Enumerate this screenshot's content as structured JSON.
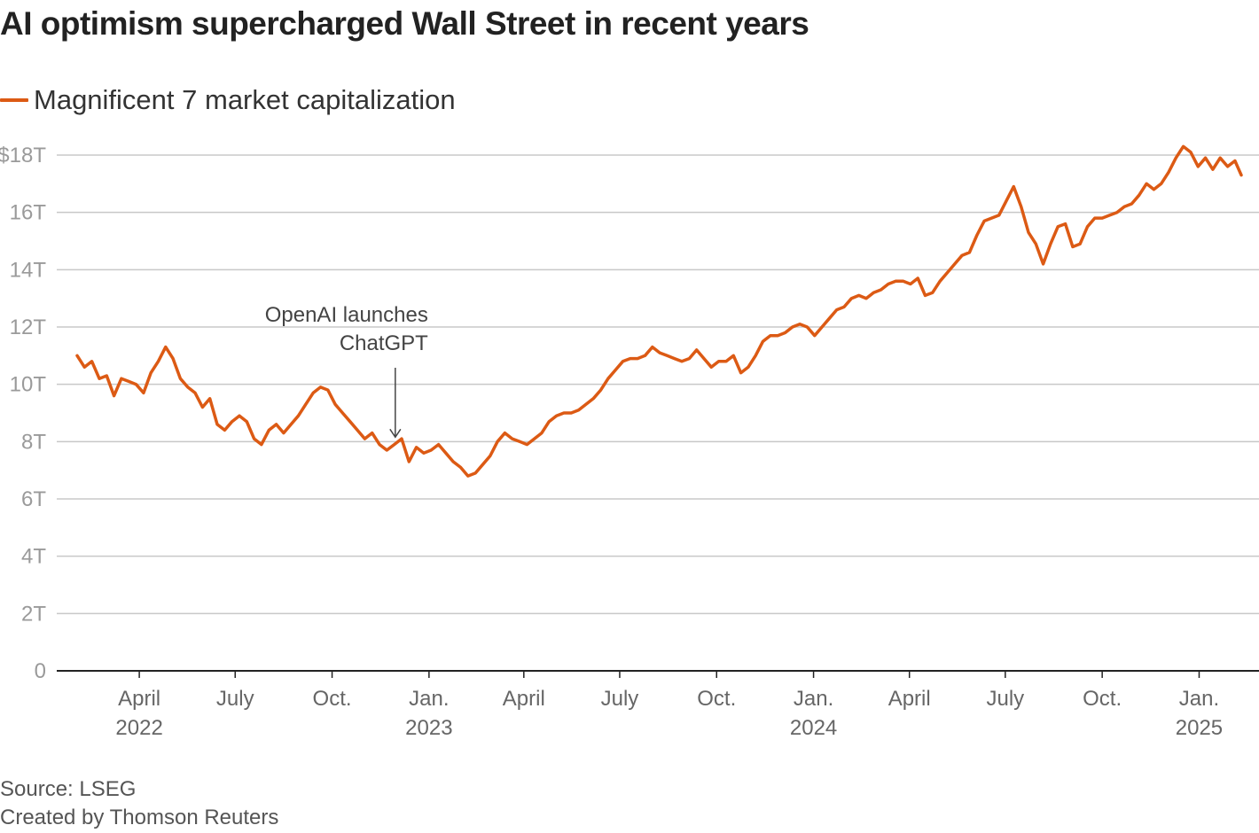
{
  "chart_data": {
    "type": "line",
    "title": "AI optimism supercharged Wall Street in recent years",
    "legend_position": "top-left",
    "grid": true,
    "colors": {
      "series": "#dc5a14",
      "grid": "#c8c8c8",
      "axis": "#222222"
    },
    "ylim": [
      0,
      18
    ],
    "y_ticks": [
      {
        "value": 0,
        "label": "0"
      },
      {
        "value": 2,
        "label": "2T"
      },
      {
        "value": 4,
        "label": "4T"
      },
      {
        "value": 6,
        "label": "6T"
      },
      {
        "value": 8,
        "label": "8T"
      },
      {
        "value": 10,
        "label": "10T"
      },
      {
        "value": 12,
        "label": "12T"
      },
      {
        "value": 14,
        "label": "14T"
      },
      {
        "value": 16,
        "label": "16T"
      },
      {
        "value": 18,
        "label": "$18T"
      }
    ],
    "xlim": [
      "2022-02-01",
      "2025-02-10"
    ],
    "x_ticks": [
      {
        "date": "2022-04-01",
        "label": "April",
        "sublabel": "2022"
      },
      {
        "date": "2022-07-01",
        "label": "July",
        "sublabel": ""
      },
      {
        "date": "2022-10-01",
        "label": "Oct.",
        "sublabel": ""
      },
      {
        "date": "2023-01-01",
        "label": "Jan.",
        "sublabel": "2023"
      },
      {
        "date": "2023-04-01",
        "label": "April",
        "sublabel": ""
      },
      {
        "date": "2023-07-01",
        "label": "July",
        "sublabel": ""
      },
      {
        "date": "2023-10-01",
        "label": "Oct.",
        "sublabel": ""
      },
      {
        "date": "2024-01-01",
        "label": "Jan.",
        "sublabel": "2024"
      },
      {
        "date": "2024-04-01",
        "label": "April",
        "sublabel": ""
      },
      {
        "date": "2024-07-01",
        "label": "July",
        "sublabel": ""
      },
      {
        "date": "2024-10-01",
        "label": "Oct.",
        "sublabel": ""
      },
      {
        "date": "2025-01-01",
        "label": "Jan.",
        "sublabel": "2025"
      }
    ],
    "series": [
      {
        "name": "Magnificent 7 market capitalization",
        "unit": "trillion USD",
        "points": [
          [
            "2022-02-01",
            11.0
          ],
          [
            "2022-02-08",
            10.6
          ],
          [
            "2022-02-15",
            10.8
          ],
          [
            "2022-02-22",
            10.2
          ],
          [
            "2022-03-01",
            10.3
          ],
          [
            "2022-03-08",
            9.6
          ],
          [
            "2022-03-15",
            10.2
          ],
          [
            "2022-03-22",
            10.1
          ],
          [
            "2022-03-29",
            10.0
          ],
          [
            "2022-04-05",
            9.7
          ],
          [
            "2022-04-12",
            10.4
          ],
          [
            "2022-04-19",
            10.8
          ],
          [
            "2022-04-26",
            11.3
          ],
          [
            "2022-05-03",
            10.9
          ],
          [
            "2022-05-10",
            10.2
          ],
          [
            "2022-05-17",
            9.9
          ],
          [
            "2022-05-24",
            9.7
          ],
          [
            "2022-05-31",
            9.2
          ],
          [
            "2022-06-07",
            9.5
          ],
          [
            "2022-06-14",
            8.6
          ],
          [
            "2022-06-21",
            8.4
          ],
          [
            "2022-06-28",
            8.7
          ],
          [
            "2022-07-05",
            8.9
          ],
          [
            "2022-07-12",
            8.7
          ],
          [
            "2022-07-19",
            8.1
          ],
          [
            "2022-07-26",
            7.9
          ],
          [
            "2022-08-02",
            8.4
          ],
          [
            "2022-08-09",
            8.6
          ],
          [
            "2022-08-16",
            8.3
          ],
          [
            "2022-08-23",
            8.6
          ],
          [
            "2022-08-30",
            8.9
          ],
          [
            "2022-09-06",
            9.3
          ],
          [
            "2022-09-13",
            9.7
          ],
          [
            "2022-09-20",
            9.9
          ],
          [
            "2022-09-27",
            9.8
          ],
          [
            "2022-10-04",
            9.3
          ],
          [
            "2022-10-11",
            9.0
          ],
          [
            "2022-10-18",
            8.7
          ],
          [
            "2022-10-25",
            8.4
          ],
          [
            "2022-11-01",
            8.1
          ],
          [
            "2022-11-08",
            8.3
          ],
          [
            "2022-11-15",
            7.9
          ],
          [
            "2022-11-22",
            7.7
          ],
          [
            "2022-11-29",
            7.9
          ],
          [
            "2022-12-06",
            8.1
          ],
          [
            "2022-12-13",
            7.3
          ],
          [
            "2022-12-20",
            7.8
          ],
          [
            "2022-12-27",
            7.6
          ],
          [
            "2023-01-03",
            7.7
          ],
          [
            "2023-01-10",
            7.9
          ],
          [
            "2023-01-17",
            7.6
          ],
          [
            "2023-01-24",
            7.3
          ],
          [
            "2023-01-31",
            7.1
          ],
          [
            "2023-02-07",
            6.8
          ],
          [
            "2023-02-14",
            6.9
          ],
          [
            "2023-02-21",
            7.2
          ],
          [
            "2023-02-28",
            7.5
          ],
          [
            "2023-03-07",
            8.0
          ],
          [
            "2023-03-14",
            8.3
          ],
          [
            "2023-03-21",
            8.1
          ],
          [
            "2023-03-28",
            8.0
          ],
          [
            "2023-04-04",
            7.9
          ],
          [
            "2023-04-11",
            8.1
          ],
          [
            "2023-04-18",
            8.3
          ],
          [
            "2023-04-25",
            8.7
          ],
          [
            "2023-05-02",
            8.9
          ],
          [
            "2023-05-09",
            9.0
          ],
          [
            "2023-05-16",
            9.0
          ],
          [
            "2023-05-23",
            9.1
          ],
          [
            "2023-05-30",
            9.3
          ],
          [
            "2023-06-06",
            9.5
          ],
          [
            "2023-06-13",
            9.8
          ],
          [
            "2023-06-20",
            10.2
          ],
          [
            "2023-06-27",
            10.5
          ],
          [
            "2023-07-04",
            10.8
          ],
          [
            "2023-07-11",
            10.9
          ],
          [
            "2023-07-18",
            10.9
          ],
          [
            "2023-07-25",
            11.0
          ],
          [
            "2023-08-01",
            11.3
          ],
          [
            "2023-08-08",
            11.1
          ],
          [
            "2023-08-15",
            11.0
          ],
          [
            "2023-08-22",
            10.9
          ],
          [
            "2023-08-29",
            10.8
          ],
          [
            "2023-09-05",
            10.9
          ],
          [
            "2023-09-12",
            11.2
          ],
          [
            "2023-09-19",
            10.9
          ],
          [
            "2023-09-26",
            10.6
          ],
          [
            "2023-10-03",
            10.8
          ],
          [
            "2023-10-10",
            10.8
          ],
          [
            "2023-10-17",
            11.0
          ],
          [
            "2023-10-24",
            10.4
          ],
          [
            "2023-10-31",
            10.6
          ],
          [
            "2023-11-07",
            11.0
          ],
          [
            "2023-11-14",
            11.5
          ],
          [
            "2023-11-21",
            11.7
          ],
          [
            "2023-11-28",
            11.7
          ],
          [
            "2023-12-05",
            11.8
          ],
          [
            "2023-12-12",
            12.0
          ],
          [
            "2023-12-19",
            12.1
          ],
          [
            "2023-12-26",
            12.0
          ],
          [
            "2024-01-02",
            11.7
          ],
          [
            "2024-01-09",
            12.0
          ],
          [
            "2024-01-16",
            12.3
          ],
          [
            "2024-01-23",
            12.6
          ],
          [
            "2024-01-30",
            12.7
          ],
          [
            "2024-02-06",
            13.0
          ],
          [
            "2024-02-13",
            13.1
          ],
          [
            "2024-02-20",
            13.0
          ],
          [
            "2024-02-27",
            13.2
          ],
          [
            "2024-03-05",
            13.3
          ],
          [
            "2024-03-12",
            13.5
          ],
          [
            "2024-03-19",
            13.6
          ],
          [
            "2024-03-26",
            13.6
          ],
          [
            "2024-04-02",
            13.5
          ],
          [
            "2024-04-09",
            13.7
          ],
          [
            "2024-04-16",
            13.1
          ],
          [
            "2024-04-23",
            13.2
          ],
          [
            "2024-04-30",
            13.6
          ],
          [
            "2024-05-07",
            13.9
          ],
          [
            "2024-05-14",
            14.2
          ],
          [
            "2024-05-21",
            14.5
          ],
          [
            "2024-05-28",
            14.6
          ],
          [
            "2024-06-04",
            15.2
          ],
          [
            "2024-06-11",
            15.7
          ],
          [
            "2024-06-18",
            15.8
          ],
          [
            "2024-06-25",
            15.9
          ],
          [
            "2024-07-02",
            16.4
          ],
          [
            "2024-07-09",
            16.9
          ],
          [
            "2024-07-16",
            16.2
          ],
          [
            "2024-07-23",
            15.3
          ],
          [
            "2024-07-30",
            14.9
          ],
          [
            "2024-08-06",
            14.2
          ],
          [
            "2024-08-13",
            14.9
          ],
          [
            "2024-08-20",
            15.5
          ],
          [
            "2024-08-27",
            15.6
          ],
          [
            "2024-09-03",
            14.8
          ],
          [
            "2024-09-10",
            14.9
          ],
          [
            "2024-09-17",
            15.5
          ],
          [
            "2024-09-24",
            15.8
          ],
          [
            "2024-10-01",
            15.8
          ],
          [
            "2024-10-08",
            15.9
          ],
          [
            "2024-10-15",
            16.0
          ],
          [
            "2024-10-22",
            16.2
          ],
          [
            "2024-10-29",
            16.3
          ],
          [
            "2024-11-05",
            16.6
          ],
          [
            "2024-11-12",
            17.0
          ],
          [
            "2024-11-19",
            16.8
          ],
          [
            "2024-11-26",
            17.0
          ],
          [
            "2024-12-03",
            17.4
          ],
          [
            "2024-12-10",
            17.9
          ],
          [
            "2024-12-17",
            18.3
          ],
          [
            "2024-12-24",
            18.1
          ],
          [
            "2024-12-31",
            17.6
          ],
          [
            "2025-01-07",
            17.9
          ],
          [
            "2025-01-14",
            17.5
          ],
          [
            "2025-01-21",
            17.9
          ],
          [
            "2025-01-28",
            17.6
          ],
          [
            "2025-02-04",
            17.8
          ],
          [
            "2025-02-10",
            17.3
          ]
        ]
      }
    ],
    "annotations": [
      {
        "lines": [
          "OpenAI launches",
          "ChatGPT"
        ],
        "date": "2022-11-30",
        "value": 8.0
      }
    ]
  },
  "source": "Source: LSEG",
  "credit": "Created by Thomson Reuters"
}
